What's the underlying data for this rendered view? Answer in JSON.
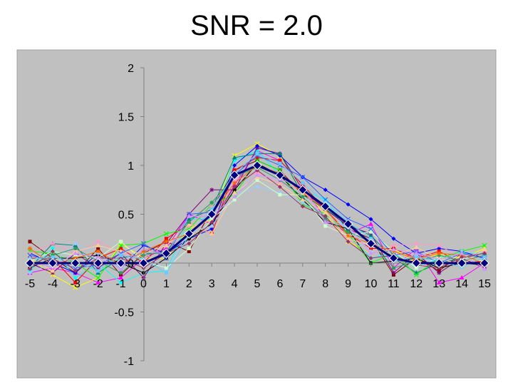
{
  "slide": {
    "title": "SNR = 2.0"
  },
  "colors": {
    "plot_background": "#c0c0c0",
    "axis": "#808080",
    "mean_series": "#000080",
    "mean_marker_fill": "#00007f",
    "noisy_palette": [
      "#800000",
      "#ff00ff",
      "#ffff00",
      "#00ffff",
      "#800080",
      "#0000ff",
      "#ff0000",
      "#008080",
      "#00ff00",
      "#000000",
      "#ff99cc",
      "#99ccff",
      "#ccffcc",
      "#ffcc99",
      "#3366ff",
      "#339966",
      "#ff6600",
      "#993366",
      "#66ccff",
      "#cc99ff"
    ]
  },
  "chart_data": {
    "type": "line",
    "title": "SNR = 2.0",
    "xlabel": "",
    "ylabel": "",
    "xlim": [
      -5,
      15
    ],
    "ylim": [
      -1,
      2
    ],
    "x_ticks": [
      -5,
      -4,
      -3,
      -2,
      -1,
      0,
      1,
      2,
      3,
      4,
      5,
      6,
      7,
      8,
      9,
      10,
      11,
      12,
      13,
      14,
      15
    ],
    "y_ticks": [
      2,
      1.5,
      1,
      0.5,
      0,
      -0.5,
      -1
    ],
    "y_tick_labels": [
      "2",
      "1.5",
      "1",
      "0.5",
      "0",
      "-0.5",
      "-1"
    ],
    "grid": false,
    "legend": "none",
    "x": [
      -5,
      -4,
      -3,
      -2,
      -1,
      0,
      1,
      2,
      3,
      4,
      5,
      6,
      7,
      8,
      9,
      10,
      11,
      12,
      13,
      14,
      15
    ],
    "mean_series": {
      "values": [
        0,
        0,
        0,
        0,
        0,
        0,
        0.1,
        0.3,
        0.5,
        0.9,
        1.0,
        0.9,
        0.75,
        0.58,
        0.4,
        0.2,
        0.05,
        0,
        0,
        0,
        0
      ],
      "marker": "diamond"
    },
    "noisy_series": [
      {
        "values": [
          0.22,
          0.05,
          -0.1,
          0.15,
          -0.12,
          0.1,
          0.22,
          0.12,
          0.55,
          0.95,
          1.05,
          0.95,
          0.7,
          0.6,
          0.35,
          0.25,
          -0.12,
          0.05,
          -0.08,
          0.1,
          0.05
        ]
      },
      {
        "values": [
          -0.1,
          -0.05,
          -0.1,
          -0.2,
          -0.15,
          0.05,
          0.15,
          0.5,
          0.4,
          0.8,
          1.15,
          1.05,
          0.8,
          0.45,
          0.3,
          0.4,
          -0.05,
          0.15,
          -0.2,
          -0.15,
          0
        ]
      },
      {
        "values": [
          0.05,
          -0.12,
          -0.25,
          -0.15,
          0.2,
          0.05,
          0.05,
          0.35,
          0.45,
          1.1,
          1.22,
          1.1,
          0.75,
          0.5,
          0.22,
          0.1,
          0.15,
          0,
          0.1,
          0.05,
          0.15
        ]
      },
      {
        "values": [
          -0.08,
          0.15,
          -0.15,
          0,
          -0.2,
          -0.1,
          -0.08,
          0.45,
          0.45,
          1.05,
          1.15,
          0.9,
          0.75,
          0.65,
          0.32,
          0.05,
          0.1,
          -0.05,
          0.05,
          0.1,
          0.1
        ]
      },
      {
        "values": [
          0,
          -0.1,
          0.1,
          -0.05,
          0.1,
          -0.15,
          0.2,
          0.5,
          0.75,
          0.75,
          1.18,
          1.12,
          0.75,
          0.55,
          0.38,
          0.3,
          -0.1,
          0.1,
          -0.1,
          0.05,
          -0.05
        ]
      },
      {
        "values": [
          0.1,
          0,
          -0.1,
          0.1,
          -0.05,
          0.18,
          0.1,
          0.25,
          0.35,
          1.0,
          1.2,
          1.1,
          0.88,
          0.75,
          0.6,
          0.45,
          0.25,
          0.1,
          0.15,
          0.12,
          0.05
        ]
      },
      {
        "values": [
          0.05,
          0.05,
          -0.2,
          0.05,
          0.15,
          0,
          0.25,
          0.4,
          0.3,
          0.95,
          1.08,
          1.05,
          0.8,
          0.55,
          0.3,
          0.15,
          0.15,
          0.05,
          0.12,
          0,
          0.02
        ]
      },
      {
        "values": [
          -0.05,
          0.2,
          0.18,
          -0.1,
          0.05,
          0.1,
          0.1,
          0.45,
          0.55,
          1.08,
          1.12,
          1.12,
          0.7,
          0.55,
          0.4,
          0.28,
          0.05,
          -0.1,
          0,
          0.05,
          0.1
        ]
      },
      {
        "values": [
          0.12,
          0.1,
          0,
          -0.15,
          0.18,
          0.2,
          0.3,
          0.35,
          0.6,
          0.7,
          1.05,
          0.95,
          0.6,
          0.5,
          0.3,
          0,
          0.1,
          -0.12,
          0.05,
          0.12,
          0.18
        ]
      },
      {
        "values": [
          -0.05,
          0.05,
          0.05,
          0.08,
          0,
          -0.1,
          0.05,
          0.25,
          0.4,
          0.75,
          1.02,
          0.9,
          0.65,
          0.42,
          0.35,
          0,
          0.02,
          0.05,
          -0.05,
          0,
          -0.02
        ]
      },
      {
        "values": [
          0.1,
          0.2,
          0.1,
          0.22,
          0.1,
          0.05,
          0.18,
          0.38,
          0.58,
          0.85,
          0.92,
          0.82,
          0.75,
          0.42,
          0.25,
          0.1,
          0.18,
          0.2,
          0.18,
          0.05,
          0.12
        ]
      },
      {
        "values": [
          -0.1,
          0,
          0.2,
          0.1,
          -0.05,
          0.12,
          -0.08,
          0.32,
          0.38,
          0.7,
          0.78,
          0.72,
          0.62,
          0.48,
          0.36,
          0.12,
          0.02,
          0.08,
          -0.02,
          0.12,
          0.08
        ]
      },
      {
        "values": [
          0.02,
          0.12,
          0.08,
          0.05,
          0.22,
          0.02,
          -0.05,
          0.15,
          0.45,
          0.65,
          0.85,
          0.7,
          0.7,
          0.38,
          0.28,
          0.32,
          0.12,
          -0.05,
          0.06,
          0.05,
          0.02
        ]
      },
      {
        "values": [
          0.05,
          -0.08,
          0.12,
          0.18,
          0.12,
          0.1,
          0.18,
          0.4,
          0.3,
          0.72,
          0.88,
          0.8,
          0.65,
          0.52,
          0.25,
          0.18,
          0.08,
          0.16,
          0.05,
          -0.02,
          0.14
        ]
      },
      {
        "values": [
          0.08,
          0.02,
          -0.05,
          -0.02,
          0.1,
          0.2,
          0.05,
          0.5,
          0.52,
          0.9,
          1.1,
          1.0,
          0.88,
          0.65,
          0.45,
          0.35,
          0.08,
          0.12,
          0,
          0.1,
          0.05
        ]
      },
      {
        "values": [
          -0.02,
          0.08,
          0.15,
          0.02,
          -0.1,
          0.08,
          0.12,
          0.42,
          0.62,
          0.88,
          0.98,
          0.85,
          0.68,
          0.45,
          0.32,
          0.22,
          -0.05,
          0.02,
          0.08,
          0.02,
          0.08
        ]
      },
      {
        "values": [
          0.15,
          -0.02,
          0.05,
          0.12,
          -0.02,
          0.12,
          0.22,
          0.3,
          0.5,
          0.82,
          1.0,
          0.92,
          0.72,
          0.55,
          0.28,
          0.2,
          0.12,
          0.04,
          0.1,
          0.08,
          0
        ]
      },
      {
        "values": [
          -0.06,
          0.12,
          -0.08,
          0.05,
          0.05,
          -0.05,
          0.1,
          0.2,
          0.42,
          0.78,
          0.95,
          0.78,
          0.58,
          0.48,
          0.22,
          0.05,
          0.08,
          -0.02,
          -0.05,
          0.06,
          0.1
        ]
      },
      {
        "values": [
          0.04,
          0.06,
          0.02,
          -0.08,
          0.08,
          0.04,
          -0.1,
          0.28,
          0.55,
          0.92,
          1.12,
          1.02,
          0.82,
          0.62,
          0.42,
          0.25,
          0.02,
          0.06,
          0.02,
          -0.04,
          0.06
        ]
      },
      {
        "values": [
          0,
          -0.04,
          0.1,
          0.06,
          -0.06,
          0.15,
          0.08,
          0.48,
          0.48,
          0.68,
          0.9,
          0.86,
          0.78,
          0.42,
          0.38,
          0.1,
          0.14,
          0.1,
          0.04,
          0.1,
          -0.06
        ]
      }
    ]
  }
}
